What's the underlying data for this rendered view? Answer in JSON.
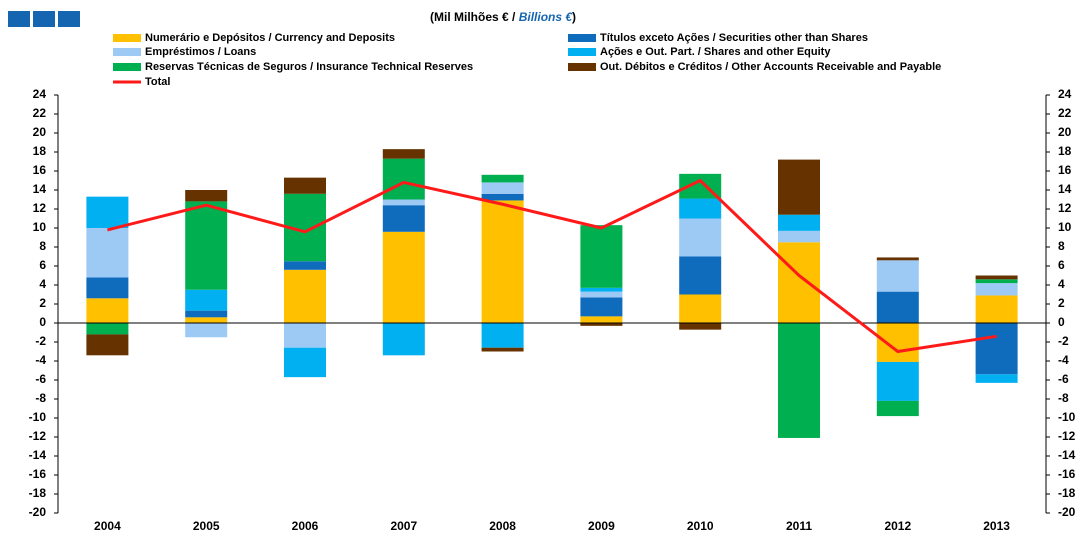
{
  "chart_data": {
    "type": "stacked-bar-line",
    "title": [
      "(Mil Milhões € / ",
      "Billions €",
      ")"
    ],
    "categories": [
      "2004",
      "2005",
      "2006",
      "2007",
      "2008",
      "2009",
      "2010",
      "2011",
      "2012",
      "2013"
    ],
    "series": [
      {
        "name": "Numerário e Depósitos / Currency and Deposits",
        "color": "#ffc000",
        "values": [
          2.6,
          0.6,
          5.6,
          9.6,
          12.9,
          0.7,
          3.0,
          8.5,
          -4.1,
          2.9
        ]
      },
      {
        "name": "Títulos exceto Ações / Securities other than Shares",
        "color": "#0f6cbd",
        "values": [
          2.2,
          0.7,
          0.9,
          2.8,
          0.7,
          2.0,
          4.0,
          0,
          3.3,
          -5.4
        ]
      },
      {
        "name": "Empréstimos / Loans",
        "color": "#9dc9f5",
        "values": [
          5.2,
          -1.5,
          -2.6,
          0.6,
          1.2,
          0.6,
          4.0,
          1.2,
          3.3,
          1.3
        ]
      },
      {
        "name": "Ações e Out. Part. / Shares and other Equity",
        "color": "#00b0f0",
        "values": [
          3.3,
          2.2,
          -3.1,
          -3.4,
          -2.6,
          0.4,
          2.1,
          1.7,
          -4.1,
          -0.9
        ]
      },
      {
        "name": "Reservas Técnicas de Seguros / Insurance Technical Reserves",
        "color": "#00b050",
        "values": [
          -1.2,
          9.3,
          7.1,
          4.3,
          0.8,
          6.6,
          2.6,
          -12.1,
          -1.6,
          0.4
        ]
      },
      {
        "name": "Out. Débitos e Créditos / Other Accounts Receivable and Payable",
        "color": "#663300",
        "values": [
          -2.2,
          1.2,
          1.7,
          1.0,
          -0.4,
          -0.3,
          -0.7,
          5.8,
          0.3,
          0.4
        ]
      }
    ],
    "line": {
      "name": "Total",
      "color": "#ff1a1a",
      "values": [
        9.8,
        12.4,
        9.6,
        14.8,
        12.5,
        10.0,
        15.0,
        5.0,
        -3.0,
        -1.4
      ]
    },
    "ylim": [
      -20,
      24
    ],
    "yticks": [
      -20,
      -18,
      -16,
      -14,
      -12,
      -10,
      -8,
      -6,
      -4,
      -2,
      0,
      2,
      4,
      6,
      8,
      10,
      12,
      14,
      16,
      18,
      20,
      22,
      24
    ]
  }
}
